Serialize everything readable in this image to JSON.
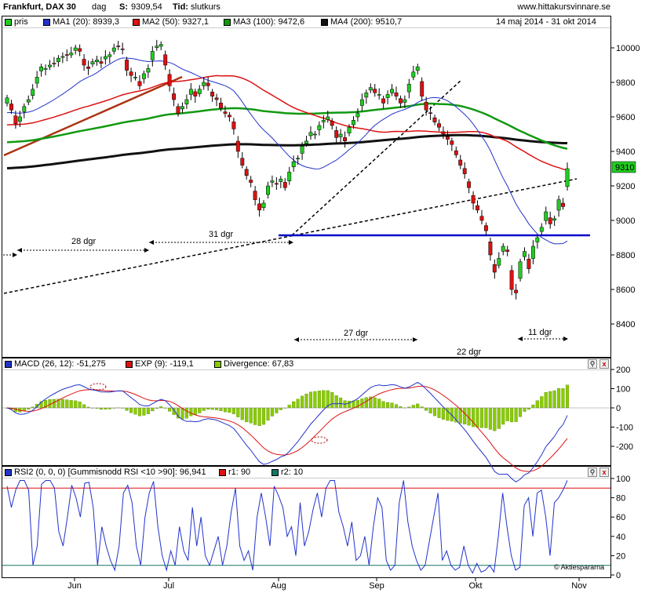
{
  "header": {
    "title": "Frankfurt, DAX 30",
    "period": "dag",
    "s_label": "S:",
    "s_value": "9309,54",
    "tid_label": "Tid:",
    "tid_value": "slutkurs",
    "site": "www.hittakursvinnare.se",
    "date_range": "14 maj 2014 - 31 okt 2014"
  },
  "legend_price": [
    {
      "label": "pris",
      "color": "#22cc22"
    },
    {
      "label": "MA1 (20): 8939,3",
      "color": "#2233cc"
    },
    {
      "label": "MA2 (50): 9327,1",
      "color": "#dd1111"
    },
    {
      "label": "MA3 (100): 9472,6",
      "color": "#119911"
    },
    {
      "label": "MA4 (200): 9510,7",
      "color": "#111111"
    }
  ],
  "legend_macd": [
    {
      "label": "MACD (26, 12): -51,275",
      "color": "#2233cc"
    },
    {
      "label": "EXP (9): -119,1",
      "color": "#dd1111"
    },
    {
      "label": "Divergence: 67,83",
      "color": "#88cc00"
    }
  ],
  "legend_rsi": [
    {
      "label": "RSI2 (0, 0, 0) [Gummisnodd RSI <10 >90]: 96,941",
      "color": "#2233cc"
    },
    {
      "label": "r1: 90",
      "color": "#dd1111"
    },
    {
      "label": "r2: 10",
      "color": "#117766"
    }
  ],
  "annotations": {
    "a28": "28 dgr",
    "a31": "31 dgr",
    "a27": "27 dgr",
    "a22": "22 dgr",
    "a11": "11 dgr",
    "last_price": "9310",
    "watermark": "© Aktiespararna"
  },
  "colors": {
    "up": "#22cc22",
    "down": "#dd1111",
    "ma20": "#2233cc",
    "ma50": "#dd1111",
    "ma100": "#119911",
    "ma200": "#111111",
    "support": "#0000cc",
    "hist": "#88cc00",
    "trend": "#aa3311",
    "r1": "#dd1111",
    "r2": "#117766"
  },
  "chart_data": [
    {
      "type": "candlestick",
      "title": "Frankfurt, DAX 30",
      "x_ticks": [
        "Jun",
        "Jul",
        "Aug",
        "Sep",
        "Okt",
        "Nov"
      ],
      "ylim": [
        8300,
        10100
      ],
      "y_ticks": [
        8400,
        8600,
        8800,
        9000,
        9200,
        9400,
        9600,
        9800,
        10000
      ],
      "grid": false,
      "close": [
        9710,
        9640,
        9560,
        9600,
        9660,
        9700,
        9760,
        9830,
        9890,
        9880,
        9900,
        9910,
        9940,
        9950,
        9960,
        9970,
        10000,
        9980,
        9900,
        9880,
        9920,
        9930,
        9910,
        9950,
        9960,
        10000,
        10010,
        9990,
        9870,
        9840,
        9830,
        9780,
        9850,
        9880,
        9980,
        10010,
        10020,
        9900,
        9780,
        9700,
        9620,
        9660,
        9700,
        9760,
        9720,
        9760,
        9800,
        9780,
        9720,
        9700,
        9650,
        9620,
        9600,
        9530,
        9400,
        9320,
        9260,
        9220,
        9120,
        9060,
        9100,
        9200,
        9230,
        9210,
        9240,
        9190,
        9280,
        9340,
        9360,
        9430,
        9460,
        9510,
        9500,
        9550,
        9580,
        9600,
        9550,
        9480,
        9500,
        9460,
        9540,
        9580,
        9620,
        9700,
        9740,
        9770,
        9740,
        9730,
        9680,
        9730,
        9760,
        9720,
        9680,
        9700,
        9790,
        9860,
        9890,
        9720,
        9640,
        9620,
        9570,
        9540,
        9500,
        9470,
        9440,
        9380,
        9320,
        9270,
        9190,
        9100,
        9060,
        9000,
        8940,
        8800,
        8700,
        8780,
        8850,
        8820,
        8600,
        8580,
        8760,
        8820,
        8720,
        8850,
        8900,
        8960,
        9050,
        8980,
        9010,
        9120,
        9080,
        9300
      ],
      "annotations": [
        "28 dgr",
        "31 dgr",
        "27 dgr",
        "22 dgr",
        "11 dgr"
      ],
      "support_level": 8910,
      "last_price": 9310
    },
    {
      "type": "line",
      "title": "MACD",
      "ylim": [
        -280,
        230
      ],
      "y_ticks": [
        -200,
        -100,
        0,
        100,
        200
      ],
      "series": [
        {
          "name": "MACD (26, 12)",
          "last": -51.275
        },
        {
          "name": "EXP (9)",
          "last": -119.1
        },
        {
          "name": "Divergence",
          "last": 67.83
        }
      ]
    },
    {
      "type": "line",
      "title": "RSI2",
      "ylim": [
        0,
        100
      ],
      "y_ticks": [
        0,
        20,
        40,
        60,
        80,
        100
      ],
      "series": [
        {
          "name": "RSI2 (0, 0, 0) [Gummisnodd RSI <10 >90]",
          "last": 96.941,
          "values": [
            92,
            70,
            88,
            98,
            98,
            88,
            10,
            30,
            94,
            98,
            98,
            90,
            45,
            30,
            60,
            93,
            80,
            60,
            95,
            96,
            70,
            10,
            50,
            30,
            15,
            5,
            30,
            85,
            93,
            75,
            30,
            10,
            60,
            85,
            97,
            50,
            20,
            5,
            25,
            10,
            50,
            25,
            15,
            70,
            30,
            60,
            20,
            10,
            25,
            40,
            10,
            30,
            65,
            90,
            30,
            15,
            25,
            5,
            60,
            85,
            60,
            30,
            92,
            82,
            70,
            40,
            50,
            20,
            75,
            30,
            45,
            68,
            85,
            60,
            90,
            98,
            98,
            65,
            50,
            30,
            55,
            15,
            20,
            40,
            10,
            50,
            80,
            70,
            15,
            5,
            10,
            75,
            98,
            55,
            30,
            15,
            5,
            10,
            35,
            60,
            85,
            15,
            25,
            10,
            5,
            8,
            30,
            10,
            2,
            12,
            3,
            5,
            10,
            3,
            40,
            85,
            50,
            20,
            5,
            8,
            72,
            80,
            40,
            85,
            88,
            60,
            20,
            75,
            80,
            88,
            98
          ]
        },
        {
          "name": "r1",
          "value": 90
        },
        {
          "name": "r2",
          "value": 10
        }
      ]
    }
  ]
}
